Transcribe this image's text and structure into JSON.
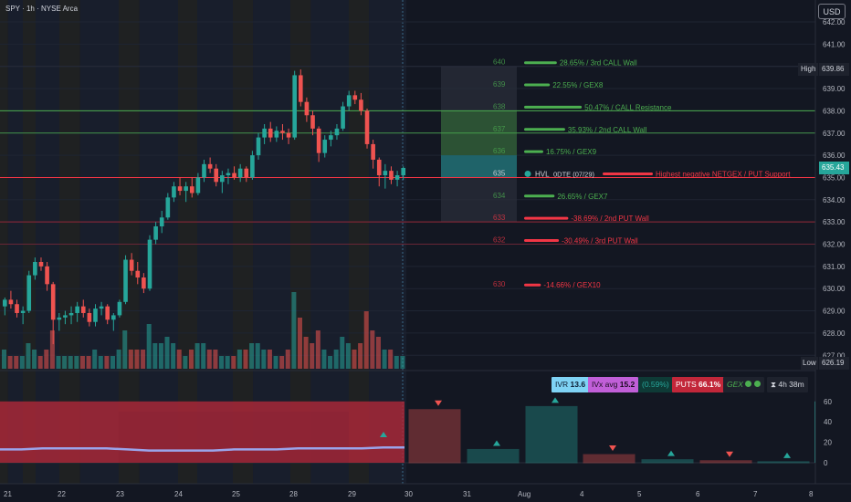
{
  "header": {
    "symbol": "SPY",
    "interval": "1h",
    "exchange": "NYSE Arca"
  },
  "currency_button": "USD",
  "price_axis": {
    "ticks": [
      "642.00",
      "641.00",
      "640.00",
      "639.00",
      "638.00",
      "637.00",
      "636.00",
      "635.00",
      "634.00",
      "633.00",
      "632.00",
      "631.00",
      "630.00",
      "629.00",
      "628.00",
      "627.00"
    ],
    "high_label": "High",
    "high_value": "639.86",
    "low_label": "Low",
    "low_value": "626.19",
    "last_value": "635.43"
  },
  "strike_labels": [
    "640",
    "639",
    "638",
    "637",
    "636",
    "635",
    "634",
    "633",
    "632",
    "630"
  ],
  "gex_levels": [
    {
      "label": "28.65% / 3rd CALL Wall",
      "strike": 640
    },
    {
      "label": "22.55% / GEX8",
      "strike": 639
    },
    {
      "label": "50.47% / CALL Resistance",
      "strike": 638
    },
    {
      "label": "35.93% / 2nd CALL Wall",
      "strike": 637
    },
    {
      "label": "16.75% / GEX9",
      "strike": 636
    },
    {
      "label": "Highest negative NETGEX / PUT Support",
      "strike": 635
    },
    {
      "label": "26.65% / GEX7",
      "strike": 634
    },
    {
      "label": "-38.69% / 2nd PUT Wall",
      "strike": 633
    },
    {
      "label": "-30.49% / 3rd PUT Wall",
      "strike": 632
    },
    {
      "label": "-14.66% / GEX10",
      "strike": 630
    }
  ],
  "hvl_label": "HVL",
  "hvl_sub": "0DTE (07/29)",
  "stats": {
    "ivr_label": "IVR",
    "ivr_value": "13.6",
    "ivx_label": "IVx avg",
    "ivx_value": "15.2",
    "change": "(0.59%)",
    "puts_label": "PUTS",
    "puts_value": "66.1%",
    "gex_label": "GEX",
    "timer": "4h 38m"
  },
  "lower_axis": {
    "ticks": [
      "60",
      "40",
      "20",
      "0"
    ]
  },
  "time_axis": [
    "21",
    "22",
    "23",
    "24",
    "25",
    "28",
    "29",
    "30",
    "31",
    "Aug",
    "4",
    "5",
    "6",
    "7",
    "8"
  ],
  "colors": {
    "bull": "#26a69a",
    "bear": "#ef5350",
    "call_green": "#4caf50",
    "put_red": "#f23645",
    "ivr_cyan": "#7fd3f5",
    "ivx_purple": "#c15fd8"
  },
  "chart_data": {
    "type": "candlestick",
    "ylim": [
      626.5,
      642.3
    ],
    "candles": [
      {
        "o": 629.2,
        "h": 629.6,
        "l": 628.8,
        "c": 629.5
      },
      {
        "o": 629.5,
        "h": 629.9,
        "l": 629.1,
        "c": 629.3
      },
      {
        "o": 629.3,
        "h": 629.5,
        "l": 628.7,
        "c": 628.9
      },
      {
        "o": 628.9,
        "h": 629.2,
        "l": 628.4,
        "c": 629.0
      },
      {
        "o": 629.0,
        "h": 630.8,
        "l": 628.9,
        "c": 630.6
      },
      {
        "o": 630.6,
        "h": 631.4,
        "l": 630.4,
        "c": 631.2
      },
      {
        "o": 631.2,
        "h": 631.4,
        "l": 630.8,
        "c": 631.0
      },
      {
        "o": 631.0,
        "h": 631.2,
        "l": 629.9,
        "c": 630.2
      },
      {
        "o": 630.2,
        "h": 630.3,
        "l": 627.5,
        "c": 628.6
      },
      {
        "o": 628.6,
        "h": 628.9,
        "l": 628.1,
        "c": 628.7
      },
      {
        "o": 628.7,
        "h": 629.0,
        "l": 628.4,
        "c": 628.8
      },
      {
        "o": 628.8,
        "h": 629.2,
        "l": 628.4,
        "c": 628.9
      },
      {
        "o": 628.9,
        "h": 629.4,
        "l": 628.5,
        "c": 629.2
      },
      {
        "o": 629.2,
        "h": 629.5,
        "l": 628.7,
        "c": 628.9
      },
      {
        "o": 628.9,
        "h": 629.1,
        "l": 628.3,
        "c": 628.5
      },
      {
        "o": 628.5,
        "h": 629.3,
        "l": 628.3,
        "c": 629.1
      },
      {
        "o": 629.1,
        "h": 629.4,
        "l": 628.8,
        "c": 629.2
      },
      {
        "o": 629.2,
        "h": 629.3,
        "l": 628.4,
        "c": 628.6
      },
      {
        "o": 628.6,
        "h": 628.9,
        "l": 628.1,
        "c": 628.8
      },
      {
        "o": 628.8,
        "h": 629.5,
        "l": 628.7,
        "c": 629.4
      },
      {
        "o": 629.4,
        "h": 631.5,
        "l": 629.3,
        "c": 631.3
      },
      {
        "o": 631.3,
        "h": 631.6,
        "l": 630.6,
        "c": 630.8
      },
      {
        "o": 630.8,
        "h": 631.2,
        "l": 630.2,
        "c": 630.5
      },
      {
        "o": 630.5,
        "h": 630.7,
        "l": 629.8,
        "c": 630.0
      },
      {
        "o": 630.0,
        "h": 632.4,
        "l": 629.9,
        "c": 632.2
      },
      {
        "o": 632.2,
        "h": 633.0,
        "l": 632.0,
        "c": 632.8
      },
      {
        "o": 632.8,
        "h": 633.5,
        "l": 632.5,
        "c": 633.2
      },
      {
        "o": 633.2,
        "h": 634.3,
        "l": 633.1,
        "c": 634.1
      },
      {
        "o": 634.1,
        "h": 634.8,
        "l": 633.9,
        "c": 634.6
      },
      {
        "o": 634.6,
        "h": 635.0,
        "l": 634.2,
        "c": 634.4
      },
      {
        "o": 634.4,
        "h": 634.8,
        "l": 633.9,
        "c": 634.6
      },
      {
        "o": 634.6,
        "h": 635.0,
        "l": 634.1,
        "c": 634.3
      },
      {
        "o": 634.3,
        "h": 635.2,
        "l": 634.2,
        "c": 635.0
      },
      {
        "o": 635.0,
        "h": 635.8,
        "l": 634.8,
        "c": 635.6
      },
      {
        "o": 635.6,
        "h": 635.9,
        "l": 635.2,
        "c": 635.4
      },
      {
        "o": 635.4,
        "h": 635.6,
        "l": 634.6,
        "c": 634.8
      },
      {
        "o": 634.8,
        "h": 635.3,
        "l": 634.3,
        "c": 635.1
      },
      {
        "o": 635.1,
        "h": 635.4,
        "l": 634.7,
        "c": 635.2
      },
      {
        "o": 635.2,
        "h": 635.5,
        "l": 634.9,
        "c": 635.0
      },
      {
        "o": 635.0,
        "h": 635.6,
        "l": 634.8,
        "c": 635.4
      },
      {
        "o": 635.4,
        "h": 635.5,
        "l": 634.8,
        "c": 635.0
      },
      {
        "o": 635.0,
        "h": 636.2,
        "l": 634.9,
        "c": 636.0
      },
      {
        "o": 636.0,
        "h": 637.0,
        "l": 635.8,
        "c": 636.8
      },
      {
        "o": 636.8,
        "h": 637.4,
        "l": 636.5,
        "c": 637.2
      },
      {
        "o": 637.2,
        "h": 637.5,
        "l": 636.6,
        "c": 636.8
      },
      {
        "o": 636.8,
        "h": 637.3,
        "l": 636.6,
        "c": 637.1
      },
      {
        "o": 637.1,
        "h": 637.4,
        "l": 636.7,
        "c": 637.0
      },
      {
        "o": 637.0,
        "h": 637.2,
        "l": 636.5,
        "c": 636.8
      },
      {
        "o": 636.8,
        "h": 639.8,
        "l": 636.7,
        "c": 639.6
      },
      {
        "o": 639.6,
        "h": 639.86,
        "l": 638.2,
        "c": 638.4
      },
      {
        "o": 638.4,
        "h": 638.6,
        "l": 637.5,
        "c": 637.8
      },
      {
        "o": 637.8,
        "h": 638.0,
        "l": 636.9,
        "c": 637.2
      },
      {
        "o": 637.2,
        "h": 637.3,
        "l": 635.7,
        "c": 636.1
      },
      {
        "o": 636.1,
        "h": 636.9,
        "l": 635.9,
        "c": 636.7
      },
      {
        "o": 636.7,
        "h": 637.1,
        "l": 636.4,
        "c": 636.9
      },
      {
        "o": 636.9,
        "h": 637.4,
        "l": 636.7,
        "c": 637.2
      },
      {
        "o": 637.2,
        "h": 638.4,
        "l": 637.1,
        "c": 638.2
      },
      {
        "o": 638.2,
        "h": 638.9,
        "l": 638.0,
        "c": 638.7
      },
      {
        "o": 638.7,
        "h": 638.9,
        "l": 638.3,
        "c": 638.5
      },
      {
        "o": 638.5,
        "h": 638.8,
        "l": 637.8,
        "c": 638.0
      },
      {
        "o": 638.0,
        "h": 638.1,
        "l": 636.3,
        "c": 636.5
      },
      {
        "o": 636.5,
        "h": 636.7,
        "l": 635.4,
        "c": 635.8
      },
      {
        "o": 635.8,
        "h": 635.9,
        "l": 634.6,
        "c": 635.1
      },
      {
        "o": 635.1,
        "h": 635.6,
        "l": 634.5,
        "c": 635.3
      },
      {
        "o": 635.3,
        "h": 635.5,
        "l": 634.7,
        "c": 634.9
      },
      {
        "o": 634.9,
        "h": 635.3,
        "l": 634.6,
        "c": 635.1
      },
      {
        "o": 635.1,
        "h": 635.5,
        "l": 634.9,
        "c": 635.43
      }
    ],
    "volume": [
      3,
      2,
      2,
      2,
      4,
      3,
      2,
      3,
      6,
      2,
      2,
      2,
      2,
      2,
      2,
      3,
      2,
      2,
      2,
      3,
      6,
      3,
      3,
      3,
      7,
      4,
      4,
      5,
      4,
      3,
      2,
      3,
      4,
      4,
      3,
      3,
      2,
      2,
      2,
      3,
      3,
      4,
      4,
      3,
      3,
      2,
      2,
      3,
      12,
      8,
      5,
      4,
      6,
      3,
      2,
      3,
      5,
      4,
      3,
      4,
      9,
      6,
      5,
      3,
      3,
      2,
      2
    ],
    "volume_levels_pct": [
      60,
      40,
      20,
      0
    ],
    "gex_bars": [
      {
        "value": 52,
        "direction": "down"
      },
      {
        "value": 13,
        "direction": "up"
      },
      {
        "value": 55,
        "direction": "up"
      },
      {
        "value": 8,
        "direction": "down"
      },
      {
        "value": 3,
        "direction": "up"
      },
      {
        "value": 2,
        "direction": "down"
      },
      {
        "value": 1,
        "direction": "up"
      }
    ],
    "iv_line": [
      13,
      13,
      14,
      14,
      14,
      14,
      13,
      12,
      12,
      12,
      12,
      13,
      13,
      13,
      14,
      14,
      14,
      14,
      15,
      15
    ]
  }
}
